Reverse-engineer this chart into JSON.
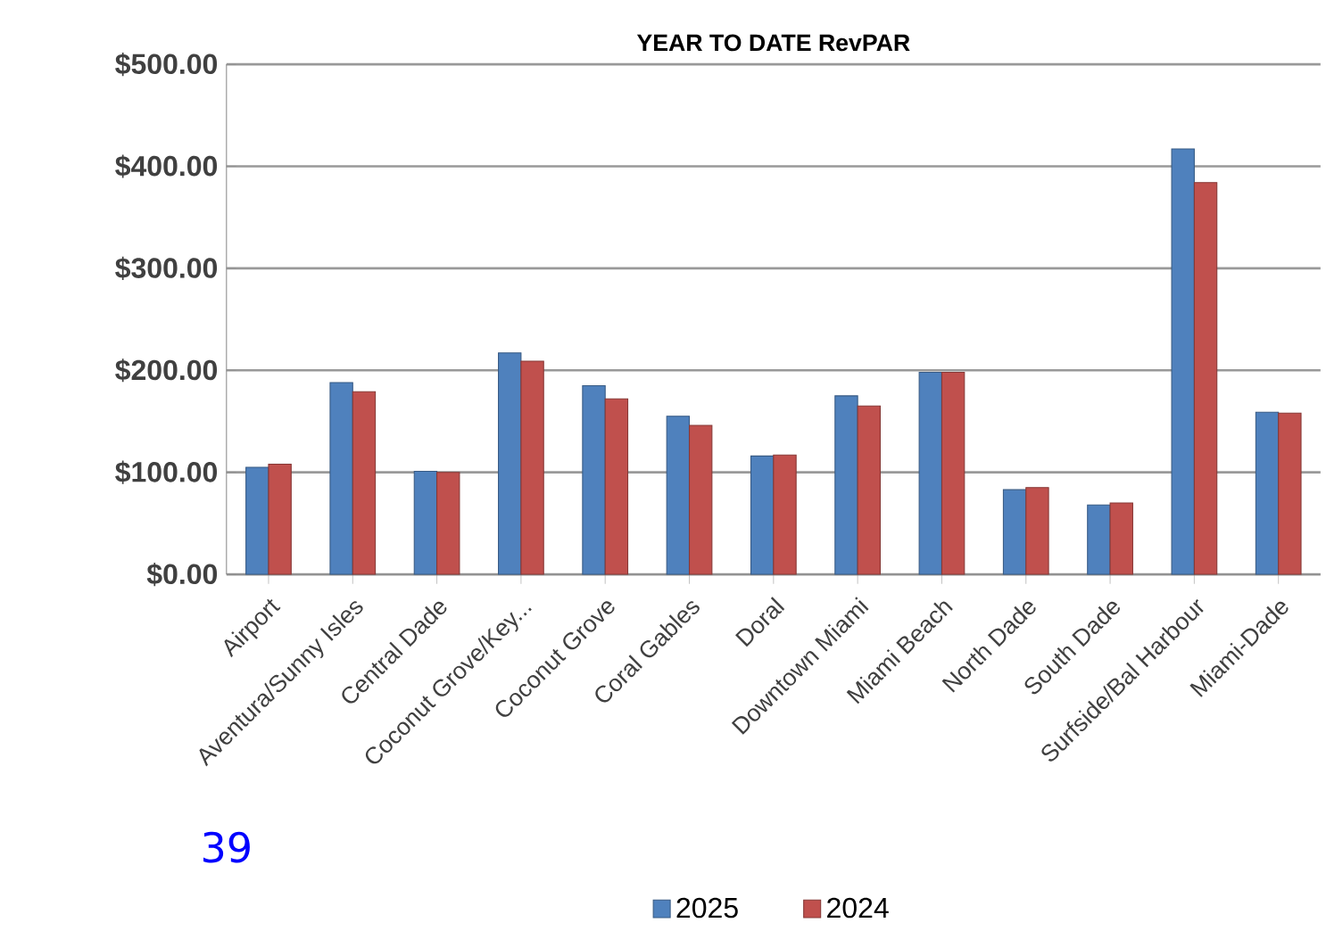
{
  "chart_data": {
    "type": "bar",
    "title": "YEAR TO DATE RevPAR",
    "categories": [
      "Airport",
      "Aventura/Sunny Isles",
      "Central Dade",
      "Coconut Grove/Key...",
      "Coconut Grove",
      "Coral Gables",
      "Doral",
      "Downtown Miami",
      "Miami Beach",
      "North Dade",
      "South Dade",
      "Surfside/Bal Harbour",
      "Miami-Dade"
    ],
    "series": [
      {
        "name": "2025",
        "color": "#4f81bd",
        "values": [
          105,
          188,
          101,
          217,
          185,
          155,
          116,
          175,
          198,
          83,
          68,
          417,
          159
        ]
      },
      {
        "name": "2024",
        "color": "#c0504d",
        "values": [
          108,
          179,
          100,
          209,
          172,
          146,
          117,
          165,
          198,
          85,
          70,
          384,
          158
        ]
      }
    ],
    "ylim": [
      0,
      500
    ],
    "yticks": [
      {
        "value": 0,
        "label": "$0.00"
      },
      {
        "value": 100,
        "label": "$100.00"
      },
      {
        "value": 200,
        "label": "$200.00"
      },
      {
        "value": 300,
        "label": "$300.00"
      },
      {
        "value": 400,
        "label": "$400.00"
      },
      {
        "value": 500,
        "label": "$500.00"
      }
    ],
    "grid": "y",
    "legend": "bottom",
    "annotations": [
      "39"
    ]
  }
}
